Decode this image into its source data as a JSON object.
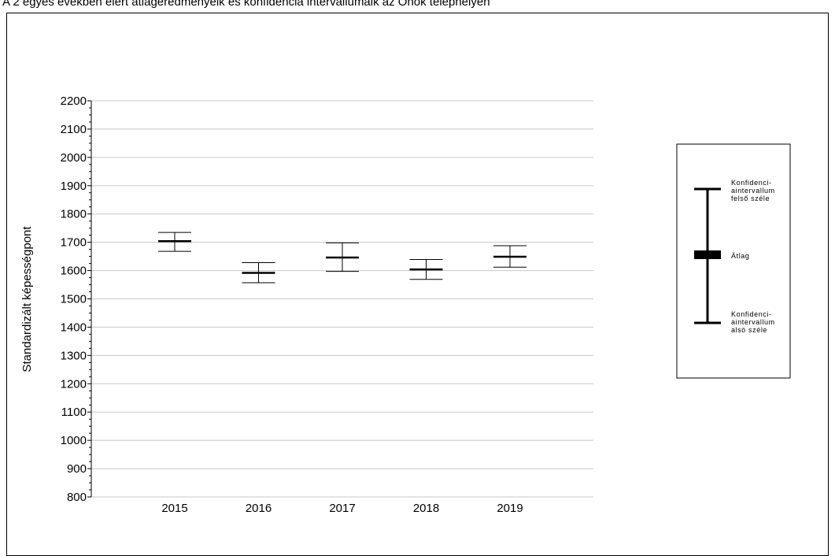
{
  "title": "A 2 egyes években elért átlageredményeik és konfidencia intervallumaik az Önök telephelyén",
  "chart_data": {
    "type": "errorbar",
    "ylabel": "Standardizált képességpont",
    "xlabel": "",
    "ylim": [
      800,
      2200
    ],
    "yticks": [
      "800",
      "900",
      "1000",
      "1100",
      "1200",
      "1300",
      "1400",
      "1500",
      "1600",
      "1700",
      "1800",
      "1900",
      "2000",
      "2100",
      "2200"
    ],
    "grid": true,
    "categories": [
      "2015",
      "2016",
      "2017",
      "2018",
      "2019"
    ],
    "series": [
      {
        "means": [
          1704,
          1592,
          1646,
          1604,
          1649
        ],
        "upper": [
          1735,
          1628,
          1698,
          1639,
          1688
        ],
        "lower": [
          1668,
          1557,
          1597,
          1569,
          1612
        ]
      }
    ]
  },
  "legend": {
    "upper_label": [
      "Konfidenci-",
      "aintervallum",
      "felső széle"
    ],
    "mean_label": "Átlag",
    "lower_label": [
      "Konfidenci-",
      "aintervallum",
      "alsó széle"
    ]
  }
}
